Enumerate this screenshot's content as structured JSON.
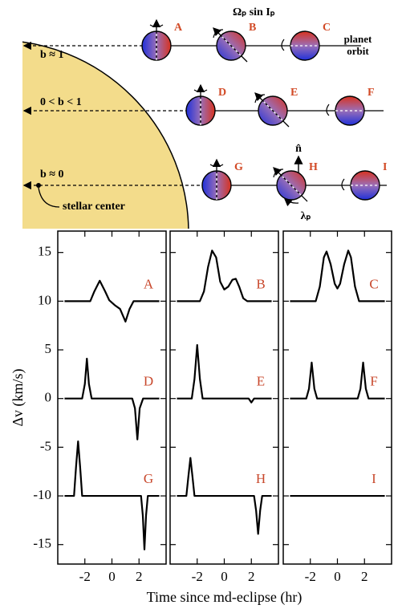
{
  "diagram": {
    "omega": "Ωₚ sin Iₚ",
    "orbit": [
      "planet",
      "orbit"
    ],
    "impact": [
      "b ≈ 1",
      "0 < b < 1",
      "b ≈ 0"
    ],
    "center": "stellar center",
    "normal": "n̂",
    "lambda": "λₚ",
    "planets": [
      "A",
      "B",
      "C",
      "D",
      "E",
      "F",
      "G",
      "H",
      "I"
    ]
  },
  "chart_data": [
    {
      "type": "line",
      "ylabel": "Δv (km/s)",
      "xlim": [
        -4,
        4
      ],
      "ylim": [
        -17,
        17.2
      ],
      "xticks": [
        -2,
        0,
        2
      ],
      "yticks": [
        15,
        10,
        5,
        0,
        -5,
        -10,
        -15
      ],
      "label_color": "#c8472b",
      "series": [
        {
          "name": "A",
          "color": "#000000",
          "x": [
            -3.5,
            -1.6,
            -1.3,
            -0.9,
            -0.5,
            -0.2,
            0.2,
            0.6,
            1.0,
            1.3,
            1.6,
            3.5
          ],
          "values": [
            10,
            10,
            11.0,
            12.1,
            11,
            10.1,
            9.6,
            9.2,
            7.9,
            9.2,
            10,
            10
          ]
        },
        {
          "name": "D",
          "color": "#000000",
          "x": [
            -3.5,
            -2.2,
            -2.0,
            -1.85,
            -1.7,
            -1.5,
            1.5,
            1.7,
            1.88,
            2.05,
            2.3,
            3.5
          ],
          "values": [
            0,
            0,
            1.5,
            4.1,
            1.5,
            0,
            0,
            -1,
            -4.2,
            -1,
            0,
            0
          ]
        },
        {
          "name": "G",
          "color": "#000000",
          "x": [
            -3.5,
            -2.8,
            -2.65,
            -2.5,
            -2.35,
            -2.2,
            2.15,
            2.28,
            2.4,
            2.52,
            2.65,
            3.5
          ],
          "values": [
            -10,
            -10,
            -7,
            -4.4,
            -7,
            -10,
            -10,
            -12,
            -15.5,
            -12,
            -10,
            -10
          ]
        }
      ]
    },
    {
      "type": "line",
      "xlabel": "Time since md-eclipse (hr)",
      "xlim": [
        -4,
        4
      ],
      "ylim": [
        -17,
        17.2
      ],
      "xticks": [
        -2,
        0,
        2
      ],
      "yticks": [
        15,
        10,
        5,
        0,
        -5,
        -10,
        -15
      ],
      "label_color": "#c8472b",
      "series": [
        {
          "name": "B",
          "color": "#000000",
          "x": [
            -3.5,
            -1.8,
            -1.5,
            -1.2,
            -0.9,
            -0.6,
            -0.3,
            0,
            0.3,
            0.6,
            0.85,
            1.1,
            1.4,
            1.7,
            3.5
          ],
          "values": [
            10,
            10,
            11,
            13.5,
            15.2,
            14.5,
            12,
            11.2,
            11.5,
            12.2,
            12.3,
            11.5,
            10.3,
            10,
            10
          ]
        },
        {
          "name": "E",
          "color": "#000000",
          "x": [
            -3.5,
            -2.4,
            -2.2,
            -2.0,
            -1.8,
            -1.6,
            1.8,
            2.0,
            2.2,
            3.5
          ],
          "values": [
            0,
            0,
            2,
            5.5,
            2,
            0,
            0,
            -0.4,
            0,
            0
          ]
        },
        {
          "name": "H",
          "color": "#000000",
          "x": [
            -3.5,
            -2.8,
            -2.65,
            -2.5,
            -2.35,
            -2.2,
            2.2,
            2.35,
            2.5,
            2.65,
            2.8,
            3.5
          ],
          "values": [
            -10,
            -10,
            -8,
            -6.1,
            -8,
            -10,
            -10,
            -11.5,
            -13.9,
            -11.5,
            -10,
            -10
          ]
        }
      ]
    },
    {
      "type": "line",
      "xlim": [
        -4,
        4
      ],
      "ylim": [
        -17,
        17.2
      ],
      "xticks": [
        -2,
        0,
        2
      ],
      "yticks": [
        15,
        10,
        5,
        0,
        -5,
        -10,
        -15
      ],
      "label_color": "#c8472b",
      "series": [
        {
          "name": "C",
          "color": "#000000",
          "x": [
            -3.5,
            -1.6,
            -1.3,
            -1.0,
            -0.8,
            -0.5,
            -0.2,
            0,
            0.2,
            0.5,
            0.8,
            1.0,
            1.3,
            1.6,
            3.5
          ],
          "values": [
            10,
            10,
            11.5,
            14.5,
            15.1,
            13.8,
            11.8,
            11.3,
            11.8,
            13.8,
            15.2,
            14.5,
            11.5,
            10,
            10
          ]
        },
        {
          "name": "F",
          "color": "#000000",
          "x": [
            -3.5,
            -2.3,
            -2.1,
            -1.9,
            -1.7,
            -1.5,
            1.5,
            1.7,
            1.9,
            2.1,
            2.3,
            3.5
          ],
          "values": [
            0,
            0,
            1,
            3.7,
            1,
            0,
            0,
            1,
            3.7,
            1,
            0,
            0
          ]
        },
        {
          "name": "I",
          "color": "#000000",
          "x": [
            -3.5,
            3.5
          ],
          "values": [
            -10,
            -10
          ]
        }
      ]
    }
  ]
}
